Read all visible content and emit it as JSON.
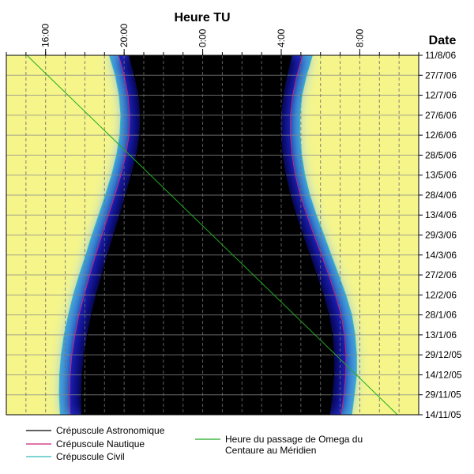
{
  "chart_data": {
    "type": "area",
    "xlabel": "Heure TU",
    "ylabel": "Date",
    "x_ticks": [
      "16:00",
      "20:00",
      "0:00",
      "4:00",
      "8:00"
    ],
    "x_range_hours_UT": [
      "14:00",
      "11:00 (next day)"
    ],
    "y_ticks": [
      "11/8/06",
      "27/7/06",
      "12/7/06",
      "27/6/06",
      "12/6/06",
      "28/5/06",
      "13/5/06",
      "28/4/06",
      "13/4/06",
      "29/3/06",
      "14/3/06",
      "27/2/06",
      "12/2/06",
      "28/1/06",
      "13/1/06",
      "29/12/05",
      "14/12/05",
      "29/11/05",
      "14/11/05"
    ],
    "grid": true,
    "legend_position": "bottom",
    "colors": {
      "day": "#f5f58a",
      "night": "#000000",
      "twilight": "#2030d0",
      "astronomical": "#000000",
      "nautical": "#cc2277",
      "civil": "#33bbbb",
      "meridian": "#22aa22"
    },
    "series": [
      {
        "name": "Crépuscule Astronomique",
        "dates": [
          "14/11/05",
          "29/11/05",
          "14/12/05",
          "29/12/05",
          "13/1/06",
          "28/1/06",
          "12/2/06",
          "27/2/06",
          "14/3/06",
          "29/3/06",
          "13/4/06",
          "28/4/06",
          "13/5/06",
          "28/5/06",
          "12/6/06",
          "27/6/06",
          "12/7/06",
          "27/7/06",
          "11/8/06"
        ],
        "evening": [
          "17:50",
          "17:50",
          "17:52",
          "17:58",
          "18:08",
          "18:20",
          "18:35",
          "18:52",
          "19:10",
          "19:28",
          "19:47",
          "20:05",
          "20:22",
          "20:38",
          "20:48",
          "20:50",
          "20:45",
          "20:32",
          "20:15"
        ],
        "morning": [
          "6:28",
          "6:35",
          "6:40",
          "6:40",
          "6:36",
          "6:25",
          "6:08",
          "5:48",
          "5:27",
          "5:05",
          "4:45",
          "4:27",
          "4:13",
          "4:03",
          "3:58",
          "3:58",
          "4:05",
          "4:17",
          "4:32"
        ]
      },
      {
        "name": "Crépuscule Nautique",
        "dates": [
          "14/11/05",
          "29/11/05",
          "14/12/05",
          "29/12/05",
          "13/1/06",
          "28/1/06",
          "12/2/06",
          "27/2/06",
          "14/3/06",
          "29/3/06",
          "13/4/06",
          "28/4/06",
          "13/5/06",
          "28/5/06",
          "12/6/06",
          "27/6/06",
          "12/7/06",
          "27/7/06",
          "11/8/06"
        ],
        "evening": [
          "17:15",
          "17:13",
          "17:15",
          "17:20",
          "17:30",
          "17:42",
          "17:58",
          "18:15",
          "18:33",
          "18:52",
          "19:12",
          "19:32",
          "19:50",
          "20:05",
          "20:15",
          "20:17",
          "20:12",
          "20:00",
          "19:43"
        ],
        "morning": [
          "7:03",
          "7:12",
          "7:17",
          "7:18",
          "7:13",
          "7:03",
          "6:45",
          "6:25",
          "6:03",
          "5:40",
          "5:18",
          "4:58",
          "4:43",
          "4:33",
          "4:28",
          "4:28",
          "4:35",
          "4:48",
          "5:05"
        ]
      },
      {
        "name": "Crépuscule Civil",
        "dates": [
          "14/11/05",
          "29/11/05",
          "14/12/05",
          "29/12/05",
          "13/1/06",
          "28/1/06",
          "12/2/06",
          "27/2/06",
          "14/3/06",
          "29/3/06",
          "13/4/06",
          "28/4/06",
          "13/5/06",
          "28/5/06",
          "12/6/06",
          "27/6/06",
          "12/7/06",
          "27/7/06",
          "11/8/06"
        ],
        "evening": [
          "16:45",
          "16:42",
          "16:43",
          "16:48",
          "16:57",
          "17:10",
          "17:25",
          "17:43",
          "18:03",
          "18:22",
          "18:43",
          "19:03",
          "19:22",
          "19:37",
          "19:47",
          "19:50",
          "19:45",
          "19:33",
          "19:15"
        ],
        "morning": [
          "7:35",
          "7:43",
          "7:50",
          "7:50",
          "7:45",
          "7:35",
          "7:17",
          "6:55",
          "6:32",
          "6:10",
          "5:47",
          "5:27",
          "5:12",
          "5:02",
          "4:57",
          "4:57",
          "5:03",
          "5:17",
          "5:35"
        ]
      },
      {
        "name": "Heure du passage de Omega du Centaure au Méridien",
        "dates": [
          "14/11/05",
          "11/8/06"
        ],
        "time": [
          "9:55",
          "15:03"
        ]
      }
    ]
  }
}
